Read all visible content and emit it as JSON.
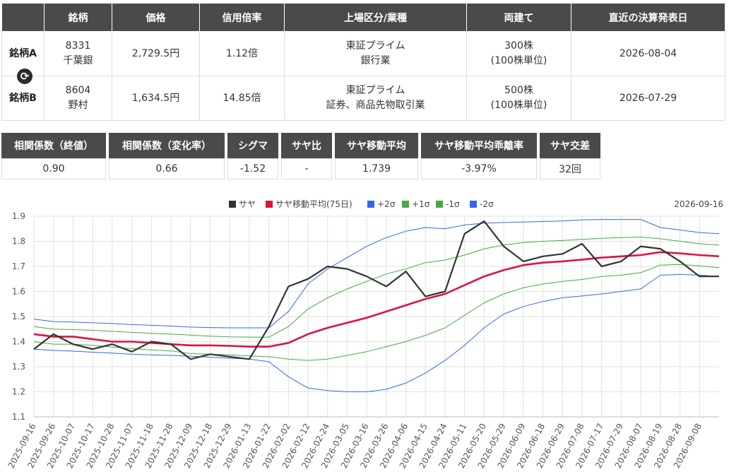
{
  "pair_table": {
    "headers": [
      "銘柄",
      "価格",
      "信用倍率",
      "上場区分/業種",
      "両建て",
      "直近の決算発表日"
    ],
    "swap_icon": "sync-icon",
    "rows": [
      {
        "label": "銘柄A",
        "code": "8331",
        "name": "千葉銀",
        "price": "2,729.5円",
        "margin_ratio": "1.12倍",
        "market": "東証プライム",
        "industry": "銀行業",
        "hedge": "300株",
        "hedge_unit": "(100株単位)",
        "earnings_date": "2026-08-04"
      },
      {
        "label": "銘柄B",
        "code": "8604",
        "name": "野村",
        "price": "1,634.5円",
        "margin_ratio": "14.85倍",
        "market": "東証プライム",
        "industry": "証券、商品先物取引業",
        "hedge": "500株",
        "hedge_unit": "(100株単位)",
        "earnings_date": "2026-07-29"
      }
    ]
  },
  "stats": {
    "headers": [
      "相関係数（終値）",
      "相関係数（変化率）",
      "シグマ",
      "サヤ比",
      "サヤ移動平均",
      "サヤ移動平均乖離率",
      "サヤ交差"
    ],
    "values": [
      "0.90",
      "0.66",
      "-1.52",
      "-",
      "1.739",
      "-3.97%",
      "32回"
    ]
  },
  "chart_data": {
    "type": "line",
    "date_label": "2026-09-16",
    "ylim": [
      1.1,
      1.9
    ],
    "yticks": [
      "1.1",
      "1.2",
      "1.3",
      "1.4",
      "1.5",
      "1.6",
      "1.7",
      "1.8",
      "1.9"
    ],
    "xticks": [
      "2025-09-16",
      "2025-09-26",
      "2025-10-07",
      "2025-10-17",
      "2025-10-28",
      "2025-11-07",
      "2025-11-18",
      "2025-11-28",
      "2025-12-09",
      "2025-12-18",
      "2025-12-29",
      "2026-01-13",
      "2026-01-22",
      "2026-02-02",
      "2026-02-12",
      "2026-02-24",
      "2026-03-05",
      "2026-03-16",
      "2026-03-26",
      "2026-04-06",
      "2026-04-15",
      "2026-04-24",
      "2026-05-11",
      "2026-05-20",
      "2026-05-29",
      "2026-06-09",
      "2026-06-18",
      "2026-06-29",
      "2026-07-08",
      "2026-07-17",
      "2026-07-29",
      "2026-08-07",
      "2026-08-19",
      "2026-08-28",
      "2026-09-08"
    ],
    "x": [
      "2025-09-16",
      "2025-09-26",
      "2025-10-07",
      "2025-10-17",
      "2025-10-28",
      "2025-11-07",
      "2025-11-18",
      "2025-11-28",
      "2025-12-09",
      "2025-12-18",
      "2025-12-29",
      "2026-01-13",
      "2026-01-22",
      "2026-02-02",
      "2026-02-12",
      "2026-02-24",
      "2026-03-05",
      "2026-03-16",
      "2026-03-26",
      "2026-04-06",
      "2026-04-15",
      "2026-04-24",
      "2026-05-11",
      "2026-05-20",
      "2026-05-29",
      "2026-06-09",
      "2026-06-18",
      "2026-06-29",
      "2026-07-08",
      "2026-07-17",
      "2026-07-29",
      "2026-08-07",
      "2026-08-19",
      "2026-08-28",
      "2026-09-08",
      "2026-09-16"
    ],
    "series": [
      {
        "name": "サヤ",
        "color": "#333333",
        "values": [
          1.37,
          1.43,
          1.39,
          1.37,
          1.39,
          1.36,
          1.4,
          1.39,
          1.33,
          1.35,
          1.34,
          1.33,
          1.46,
          1.62,
          1.65,
          1.7,
          1.69,
          1.66,
          1.62,
          1.68,
          1.58,
          1.6,
          1.83,
          1.88,
          1.78,
          1.72,
          1.74,
          1.75,
          1.79,
          1.7,
          1.72,
          1.78,
          1.77,
          1.72,
          1.66,
          1.66
        ]
      },
      {
        "name": "サヤ移動平均(75日)",
        "color": "#dc143c",
        "values": [
          1.43,
          1.42,
          1.42,
          1.41,
          1.4,
          1.4,
          1.395,
          1.39,
          1.385,
          1.385,
          1.383,
          1.38,
          1.38,
          1.395,
          1.43,
          1.455,
          1.475,
          1.495,
          1.52,
          1.545,
          1.57,
          1.59,
          1.625,
          1.66,
          1.685,
          1.705,
          1.715,
          1.72,
          1.727,
          1.735,
          1.74,
          1.745,
          1.757,
          1.752,
          1.745,
          1.74
        ]
      },
      {
        "name": "+2σ",
        "color": "#3366ee",
        "values": [
          1.49,
          1.48,
          1.478,
          1.475,
          1.472,
          1.468,
          1.465,
          1.462,
          1.458,
          1.456,
          1.455,
          1.455,
          1.455,
          1.52,
          1.63,
          1.69,
          1.735,
          1.78,
          1.815,
          1.84,
          1.855,
          1.85,
          1.865,
          1.872,
          1.875,
          1.877,
          1.879,
          1.881,
          1.885,
          1.887,
          1.887,
          1.887,
          1.855,
          1.845,
          1.835,
          1.83
        ]
      },
      {
        "name": "+1σ",
        "color": "#44aa44",
        "values": [
          1.46,
          1.45,
          1.448,
          1.445,
          1.441,
          1.437,
          1.433,
          1.43,
          1.426,
          1.422,
          1.419,
          1.418,
          1.418,
          1.46,
          1.53,
          1.575,
          1.61,
          1.64,
          1.67,
          1.69,
          1.715,
          1.725,
          1.745,
          1.77,
          1.785,
          1.795,
          1.8,
          1.803,
          1.808,
          1.812,
          1.815,
          1.817,
          1.81,
          1.8,
          1.79,
          1.785
        ]
      },
      {
        "name": "-1σ",
        "color": "#44aa44",
        "values": [
          1.4,
          1.39,
          1.39,
          1.385,
          1.378,
          1.372,
          1.367,
          1.363,
          1.352,
          1.35,
          1.347,
          1.343,
          1.34,
          1.33,
          1.325,
          1.33,
          1.345,
          1.36,
          1.38,
          1.4,
          1.425,
          1.455,
          1.505,
          1.555,
          1.59,
          1.615,
          1.63,
          1.64,
          1.648,
          1.66,
          1.665,
          1.675,
          1.705,
          1.708,
          1.702,
          1.695
        ]
      },
      {
        "name": "-2σ",
        "color": "#3366ee",
        "values": [
          1.37,
          1.365,
          1.362,
          1.358,
          1.354,
          1.35,
          1.347,
          1.345,
          1.342,
          1.338,
          1.334,
          1.33,
          1.32,
          1.26,
          1.215,
          1.205,
          1.2,
          1.2,
          1.21,
          1.235,
          1.275,
          1.325,
          1.385,
          1.455,
          1.51,
          1.54,
          1.56,
          1.575,
          1.582,
          1.59,
          1.6,
          1.61,
          1.665,
          1.668,
          1.665,
          1.66
        ]
      }
    ]
  }
}
